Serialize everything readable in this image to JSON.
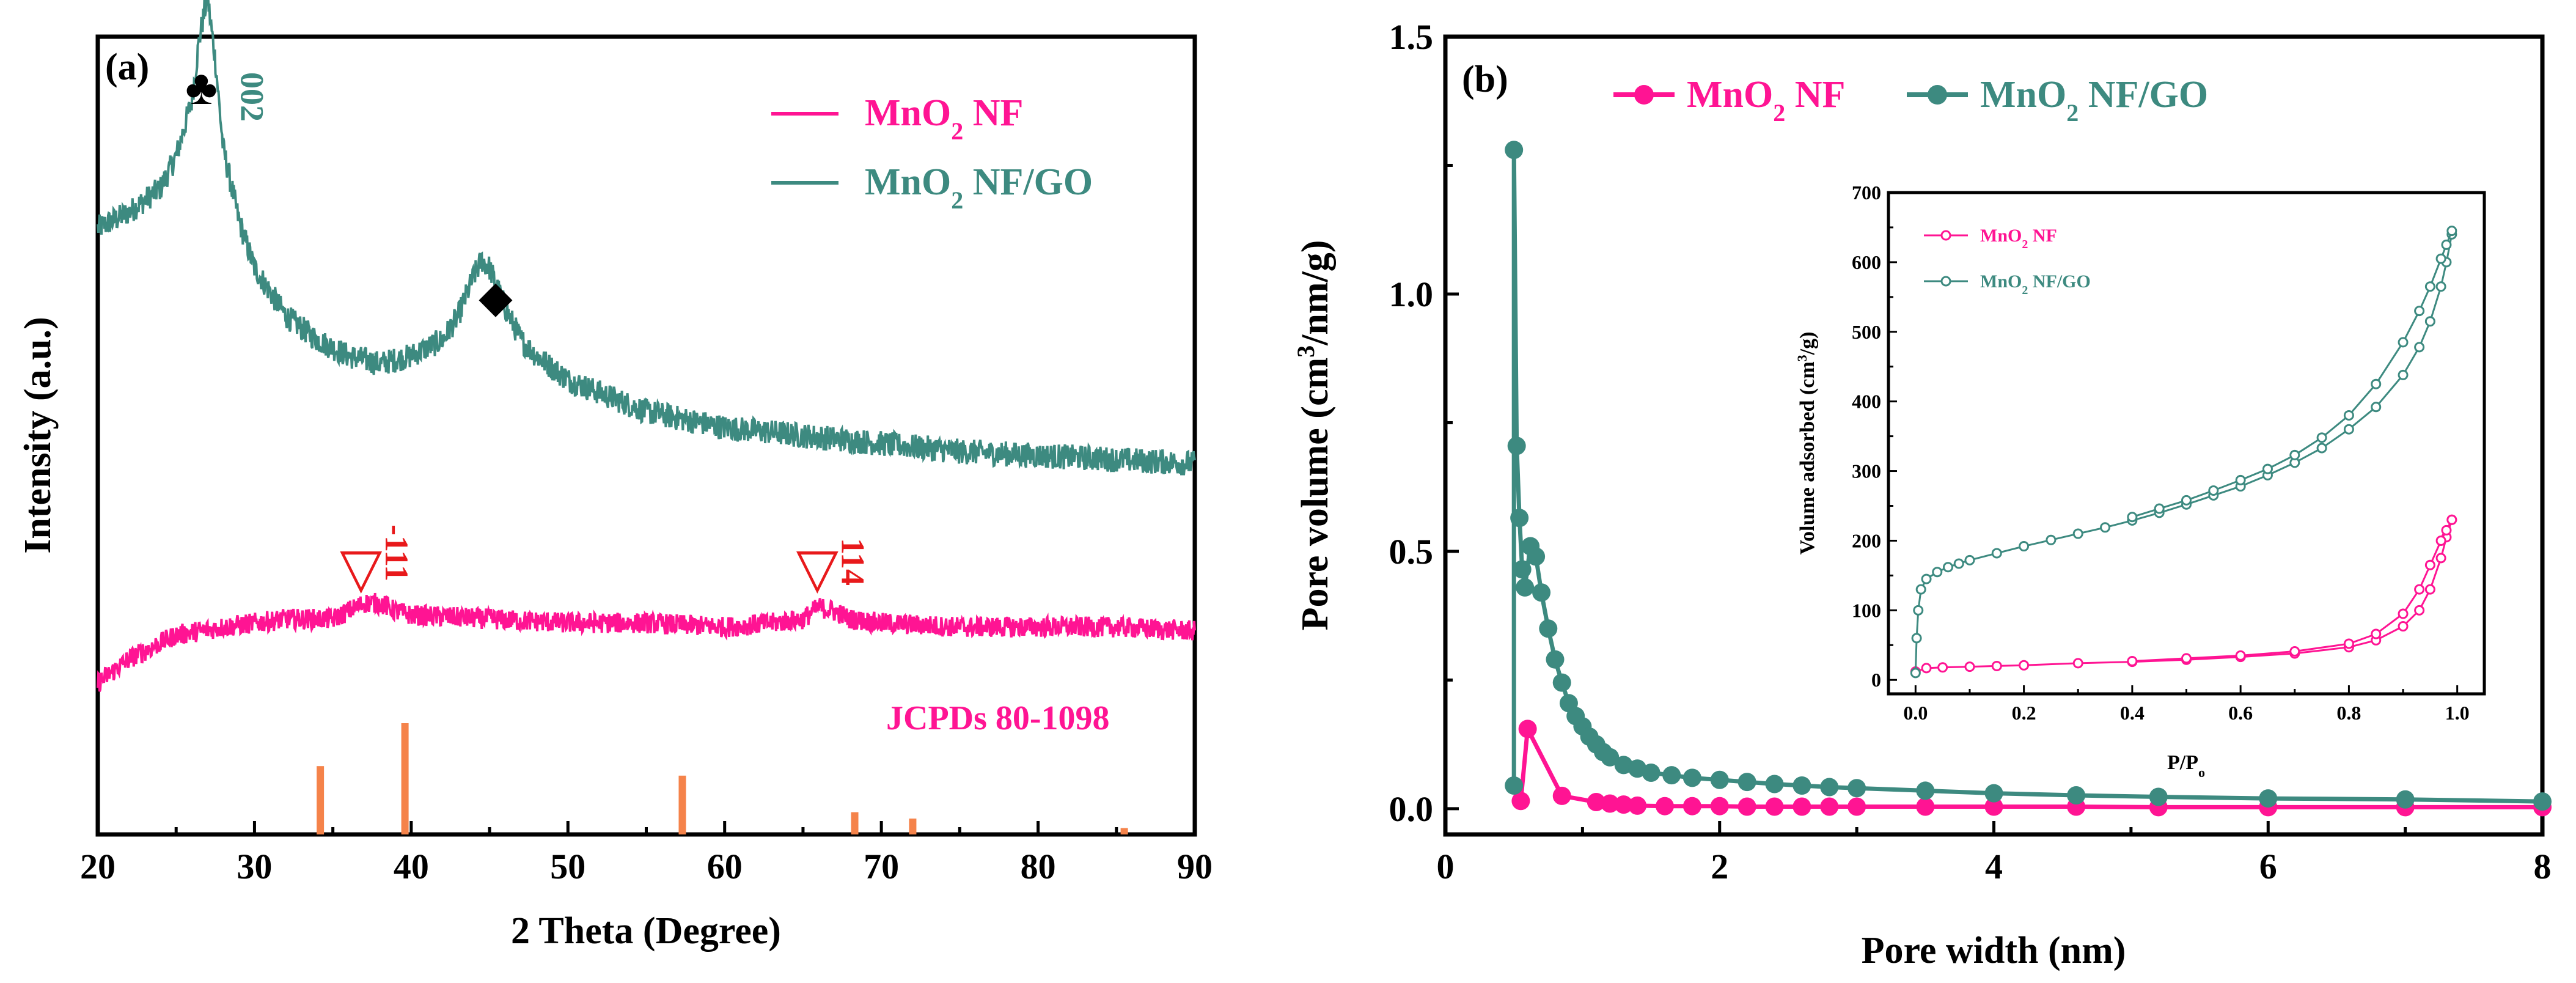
{
  "colors": {
    "pink": "#ff1493",
    "teal": "#3d8a80",
    "orange": "#f5834a",
    "red": "#e8191b",
    "black": "#000000"
  },
  "chart_data": [
    {
      "type": "line",
      "panel_label": "(a)",
      "xlabel": "2 Theta (Degree)",
      "ylabel": "Intensity (a.u.)",
      "xlim": [
        20,
        90
      ],
      "xticks": [
        20,
        30,
        40,
        50,
        60,
        70,
        80,
        90
      ],
      "yticks": [],
      "legend": {
        "position": "top-right",
        "entries": [
          {
            "base": "MnO",
            "sub": "2",
            "rest": " NF",
            "color": "#ff1493"
          },
          {
            "base": "MnO",
            "sub": "2",
            "rest": " NF/GO",
            "color": "#3d8a80"
          }
        ]
      },
      "series": [
        {
          "name": "MnO2 NF/GO",
          "color": "#3d8a80",
          "x": [
            20,
            22,
            24,
            25,
            26,
            26.5,
            27,
            27.5,
            28,
            29,
            30,
            32,
            34,
            36,
            38,
            40,
            42,
            43,
            44,
            44.5,
            45,
            46,
            47,
            48,
            50,
            55,
            60,
            65,
            70,
            75,
            80,
            85,
            90
          ],
          "y": [
            0.76,
            0.78,
            0.81,
            0.85,
            0.92,
            1.0,
            1.05,
            0.97,
            0.86,
            0.77,
            0.71,
            0.65,
            0.62,
            0.6,
            0.59,
            0.6,
            0.62,
            0.65,
            0.7,
            0.72,
            0.71,
            0.66,
            0.62,
            0.6,
            0.57,
            0.53,
            0.51,
            0.5,
            0.49,
            0.48,
            0.475,
            0.47,
            0.465
          ],
          "noise": 0.016
        },
        {
          "name": "MnO2 NF",
          "color": "#ff1493",
          "x": [
            20,
            22,
            25,
            28,
            32,
            35,
            36,
            37,
            38,
            39,
            40,
            45,
            50,
            55,
            60,
            63,
            65,
            66,
            67,
            68,
            70,
            75,
            80,
            85,
            90
          ],
          "y": [
            0.19,
            0.22,
            0.25,
            0.26,
            0.27,
            0.27,
            0.28,
            0.29,
            0.29,
            0.28,
            0.275,
            0.27,
            0.265,
            0.265,
            0.26,
            0.265,
            0.27,
            0.285,
            0.28,
            0.27,
            0.265,
            0.26,
            0.26,
            0.26,
            0.255
          ],
          "noise": 0.013
        }
      ],
      "reference_pattern": {
        "label": "JCPDs 80-1098",
        "color": "#f5834a",
        "peaks": [
          {
            "x": 34.2,
            "intensity": 0.43
          },
          {
            "x": 39.6,
            "intensity": 0.7
          },
          {
            "x": 57.3,
            "intensity": 0.37
          },
          {
            "x": 68.3,
            "intensity": 0.14
          },
          {
            "x": 72.0,
            "intensity": 0.1
          },
          {
            "x": 85.5,
            "intensity": 0.04
          }
        ]
      },
      "annotations": [
        {
          "symbol": "♣",
          "text": "002",
          "x": 27.0,
          "color": "#3d8a80"
        },
        {
          "symbol": "◆",
          "x": 44.8
        },
        {
          "symbol": "▽",
          "text": "-111",
          "x": 37.5,
          "color": "#e8191b"
        },
        {
          "symbol": "▽",
          "text": "114",
          "x": 66.5,
          "color": "#e8191b"
        }
      ]
    },
    {
      "type": "line",
      "panel_label": "(b)",
      "xlabel": "Pore width (nm)",
      "ylabel_parts": [
        "Pore volume (cm",
        "3",
        "/nm/g)"
      ],
      "xlim": [
        0,
        8
      ],
      "ylim": [
        -0.05,
        1.5
      ],
      "xticks": [
        0,
        2,
        4,
        6,
        8
      ],
      "yticks": [
        "0.0",
        "0.5",
        "1.0",
        "1.5"
      ],
      "legend": {
        "position": "top",
        "entries": [
          {
            "base": "MnO",
            "sub": "2",
            "rest": " NF",
            "color": "#ff1493"
          },
          {
            "base": "MnO",
            "sub": "2",
            "rest": " NF/GO",
            "color": "#3d8a80"
          }
        ]
      },
      "series": [
        {
          "name": "MnO2 NF",
          "color": "#ff1493",
          "x": [
            0.55,
            0.6,
            0.85,
            1.1,
            1.2,
            1.3,
            1.4,
            1.6,
            1.8,
            2.0,
            2.2,
            2.4,
            2.6,
            2.8,
            3.0,
            3.5,
            4.0,
            4.6,
            5.2,
            6.0,
            7.0,
            8.0
          ],
          "y": [
            0.015,
            0.155,
            0.025,
            0.013,
            0.01,
            0.008,
            0.006,
            0.005,
            0.005,
            0.005,
            0.004,
            0.004,
            0.004,
            0.004,
            0.004,
            0.004,
            0.004,
            0.004,
            0.003,
            0.003,
            0.003,
            0.003
          ]
        },
        {
          "name": "MnO2 NF/GO",
          "color": "#3d8a80",
          "x": [
            0.5,
            0.5,
            0.52,
            0.54,
            0.56,
            0.58,
            0.62,
            0.66,
            0.7,
            0.75,
            0.8,
            0.85,
            0.9,
            0.95,
            1.0,
            1.05,
            1.1,
            1.15,
            1.2,
            1.3,
            1.4,
            1.5,
            1.65,
            1.8,
            2.0,
            2.2,
            2.4,
            2.6,
            2.8,
            3.0,
            3.5,
            4.0,
            4.6,
            5.2,
            6.0,
            7.0,
            8.0
          ],
          "y": [
            0.045,
            1.28,
            0.705,
            0.565,
            0.465,
            0.43,
            0.51,
            0.49,
            0.42,
            0.35,
            0.29,
            0.245,
            0.205,
            0.18,
            0.16,
            0.14,
            0.125,
            0.11,
            0.1,
            0.085,
            0.078,
            0.07,
            0.065,
            0.06,
            0.056,
            0.052,
            0.048,
            0.045,
            0.042,
            0.04,
            0.035,
            0.03,
            0.026,
            0.023,
            0.02,
            0.018,
            0.014
          ]
        }
      ],
      "inset": {
        "xlabel_parts": [
          "P/P",
          "o"
        ],
        "ylabel_parts": [
          "Volume adsorbed (cm",
          "3",
          "/g)"
        ],
        "xlim": [
          -0.05,
          1.05
        ],
        "ylim": [
          -20,
          700
        ],
        "xticks": [
          "0.0",
          "0.2",
          "0.4",
          "0.6",
          "0.8",
          "1.0"
        ],
        "yticks": [
          "0",
          "100",
          "200",
          "300",
          "400",
          "500",
          "600",
          "700"
        ],
        "legend_entries": [
          {
            "base": "MnO",
            "sub": "2",
            "rest": " NF",
            "color": "#ff1493"
          },
          {
            "base": "MnO",
            "sub": "2",
            "rest": " NF/GO",
            "color": "#3d8a80"
          }
        ],
        "series": [
          {
            "name": "MnO2 NF adsorption",
            "color": "#ff1493",
            "x": [
              0.0,
              0.02,
              0.05,
              0.1,
              0.15,
              0.2,
              0.3,
              0.4,
              0.5,
              0.6,
              0.7,
              0.8,
              0.85,
              0.9,
              0.93,
              0.95,
              0.97,
              0.98,
              0.99
            ],
            "y": [
              12,
              17,
              18,
              19,
              20,
              21,
              24,
              26,
              29,
              33,
              38,
              47,
              57,
              77,
              100,
              130,
              175,
              205,
              230
            ]
          },
          {
            "name": "MnO2 NF desorption",
            "color": "#ff1493",
            "x": [
              0.99,
              0.98,
              0.97,
              0.95,
              0.93,
              0.9,
              0.85,
              0.8,
              0.7,
              0.6,
              0.5,
              0.4
            ],
            "y": [
              230,
              215,
              200,
              165,
              130,
              95,
              66,
              52,
              41,
              35,
              31,
              27
            ]
          },
          {
            "name": "MnO2 NF/GO adsorption",
            "color": "#3d8a80",
            "x": [
              0.0,
              0.002,
              0.005,
              0.01,
              0.02,
              0.04,
              0.06,
              0.08,
              0.1,
              0.15,
              0.2,
              0.25,
              0.3,
              0.35,
              0.4,
              0.45,
              0.5,
              0.55,
              0.6,
              0.65,
              0.7,
              0.75,
              0.8,
              0.85,
              0.9,
              0.93,
              0.95,
              0.97,
              0.98,
              0.99
            ],
            "y": [
              10,
              60,
              100,
              130,
              145,
              155,
              162,
              167,
              172,
              182,
              192,
              201,
              210,
              219,
              229,
              240,
              252,
              265,
              278,
              294,
              312,
              333,
              360,
              392,
              438,
              478,
              515,
              565,
              600,
              640
            ]
          },
          {
            "name": "MnO2 NF/GO desorption",
            "color": "#3d8a80",
            "x": [
              0.99,
              0.98,
              0.97,
              0.95,
              0.93,
              0.9,
              0.85,
              0.8,
              0.75,
              0.7,
              0.65,
              0.6,
              0.55,
              0.5,
              0.45,
              0.4
            ],
            "y": [
              645,
              625,
              605,
              565,
              530,
              485,
              425,
              380,
              348,
              323,
              303,
              287,
              272,
              258,
              246,
              234
            ]
          }
        ]
      }
    }
  ]
}
